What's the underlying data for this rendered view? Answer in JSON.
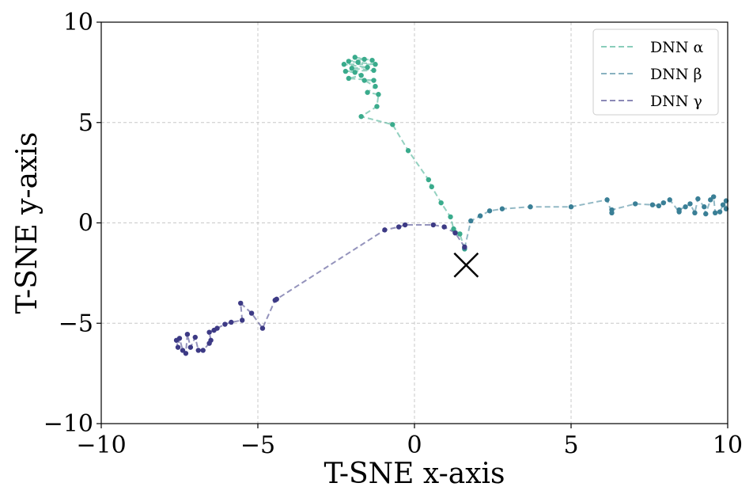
{
  "chart_data": {
    "type": "line",
    "title": "",
    "xlabel": "T-SNE x-axis",
    "ylabel": "T-SNE y-axis",
    "xlim": [
      -10,
      10
    ],
    "ylim": [
      -10,
      10
    ],
    "xticks": [
      -10,
      -5,
      0,
      5,
      10
    ],
    "yticks": [
      -10,
      -5,
      0,
      5,
      10
    ],
    "xtick_labels": [
      "−10",
      "−5",
      "0",
      "5",
      "10"
    ],
    "ytick_labels": [
      "−10",
      "−5",
      "0",
      "5",
      "10"
    ],
    "grid": true,
    "legend_position": "top-right",
    "marker_point": {
      "x": 1.65,
      "y": -2.1,
      "symbol": "x",
      "color": "#000000"
    },
    "series": [
      {
        "name": "DNN α",
        "color": "#3aab8c",
        "line_style": "dashed",
        "points": [
          [
            1.6,
            -1.3
          ],
          [
            1.45,
            -0.55
          ],
          [
            1.25,
            -0.3
          ],
          [
            1.15,
            0.3
          ],
          [
            0.85,
            1.0
          ],
          [
            0.55,
            1.8
          ],
          [
            0.45,
            2.15
          ],
          [
            -0.2,
            3.6
          ],
          [
            -0.7,
            4.9
          ],
          [
            -1.7,
            5.3
          ],
          [
            -1.2,
            5.8
          ],
          [
            -1.15,
            6.4
          ],
          [
            -1.5,
            6.5
          ],
          [
            -1.25,
            6.8
          ],
          [
            -1.6,
            7.1
          ],
          [
            -1.3,
            7.1
          ],
          [
            -2.1,
            7.2
          ],
          [
            -1.7,
            7.35
          ],
          [
            -1.9,
            7.5
          ],
          [
            -2.2,
            7.55
          ],
          [
            -1.3,
            7.6
          ],
          [
            -2.0,
            7.7
          ],
          [
            -1.5,
            7.75
          ],
          [
            -2.25,
            7.9
          ],
          [
            -1.25,
            7.9
          ],
          [
            -1.8,
            8.0
          ],
          [
            -2.1,
            8.05
          ],
          [
            -1.6,
            8.15
          ],
          [
            -1.9,
            8.25
          ],
          [
            -1.35,
            8.1
          ]
        ]
      },
      {
        "name": "DNN β",
        "color": "#3a7f96",
        "line_style": "dashed",
        "points": [
          [
            1.6,
            -1.25
          ],
          [
            1.8,
            0.1
          ],
          [
            2.1,
            0.35
          ],
          [
            2.4,
            0.6
          ],
          [
            2.8,
            0.7
          ],
          [
            3.7,
            0.8
          ],
          [
            5.0,
            0.8
          ],
          [
            6.15,
            1.15
          ],
          [
            6.3,
            0.5
          ],
          [
            6.3,
            0.65
          ],
          [
            7.05,
            0.95
          ],
          [
            7.6,
            0.9
          ],
          [
            7.8,
            0.85
          ],
          [
            7.95,
            1.0
          ],
          [
            8.15,
            1.15
          ],
          [
            8.45,
            0.55
          ],
          [
            8.45,
            0.65
          ],
          [
            8.65,
            0.8
          ],
          [
            8.8,
            0.95
          ],
          [
            8.95,
            0.5
          ],
          [
            9.05,
            1.2
          ],
          [
            9.25,
            0.8
          ],
          [
            9.3,
            0.45
          ],
          [
            9.45,
            1.15
          ],
          [
            9.55,
            1.3
          ],
          [
            9.6,
            0.5
          ],
          [
            9.75,
            0.55
          ],
          [
            9.85,
            0.9
          ],
          [
            9.95,
            1.1
          ],
          [
            9.95,
            0.7
          ]
        ]
      },
      {
        "name": "DNN γ",
        "color": "#3d3a85",
        "line_style": "dashed",
        "points": [
          [
            1.6,
            -1.2
          ],
          [
            1.3,
            -0.5
          ],
          [
            0.95,
            -0.2
          ],
          [
            0.6,
            -0.1
          ],
          [
            -0.3,
            -0.1
          ],
          [
            -0.5,
            -0.2
          ],
          [
            -0.95,
            -0.35
          ],
          [
            -4.4,
            -3.8
          ],
          [
            -4.45,
            -3.85
          ],
          [
            -4.85,
            -5.25
          ],
          [
            -5.2,
            -4.5
          ],
          [
            -5.55,
            -4.0
          ],
          [
            -5.5,
            -4.85
          ],
          [
            -5.85,
            -4.95
          ],
          [
            -6.05,
            -5.05
          ],
          [
            -6.3,
            -5.25
          ],
          [
            -6.4,
            -5.35
          ],
          [
            -6.55,
            -5.45
          ],
          [
            -6.5,
            -5.85
          ],
          [
            -6.55,
            -6.0
          ],
          [
            -6.75,
            -6.35
          ],
          [
            -6.9,
            -6.35
          ],
          [
            -7.0,
            -5.7
          ],
          [
            -7.15,
            -6.2
          ],
          [
            -7.25,
            -5.55
          ],
          [
            -7.3,
            -6.5
          ],
          [
            -7.4,
            -6.35
          ],
          [
            -7.5,
            -5.75
          ],
          [
            -7.55,
            -6.2
          ],
          [
            -7.6,
            -5.85
          ]
        ]
      }
    ]
  }
}
